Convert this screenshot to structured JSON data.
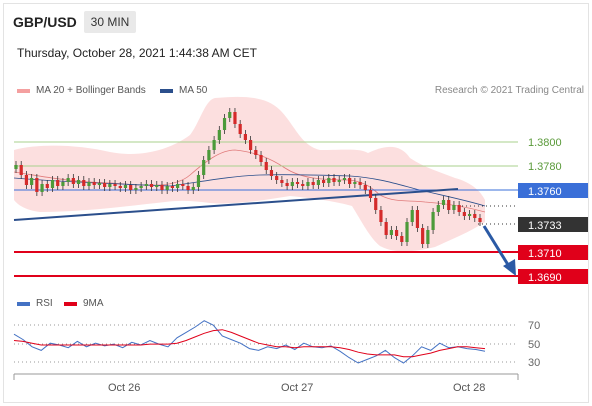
{
  "header": {
    "pair": "GBP/USD",
    "timeframe": "30 MIN",
    "datetime": "Thursday, October 28, 2021 1:44:38 AM CET"
  },
  "legend": {
    "ma20_label": "MA 20 + Bollinger Bands",
    "ma50_label": "MA 50",
    "rsi_label": "RSI",
    "ma9_label": "9MA",
    "research": "Research © 2021 Trading Central"
  },
  "colors": {
    "bollinger": "#f4a0a0",
    "ma50": "#2b4f8c",
    "rsi": "#4472c4",
    "ma9": "#e0001a",
    "support": "#e0001a",
    "resistance_line": "#3a6fd8",
    "target_line": "#a9d18e"
  },
  "chart_data": [
    {
      "type": "candlestick",
      "title": "",
      "x_ticks": [
        "Oct 26",
        "Oct 27",
        "Oct 28"
      ],
      "levels": [
        {
          "value": "1.3800",
          "kind": "target",
          "style": "pill-none"
        },
        {
          "value": "1.3780",
          "kind": "target",
          "style": "pill-none"
        },
        {
          "value": "1.3760",
          "kind": "resistance",
          "style": "pill-blue"
        },
        {
          "value": "1.3733",
          "kind": "last-price",
          "style": "pill-dark"
        },
        {
          "value": "1.3710",
          "kind": "support",
          "style": "pill-red"
        },
        {
          "value": "1.3690",
          "kind": "support",
          "style": "pill-red"
        }
      ],
      "ylim": [
        1.3665,
        1.383
      ],
      "trend": "bearish"
    },
    {
      "type": "line",
      "title": "",
      "y_ticks": [
        "70",
        "50",
        "30"
      ],
      "ylim": [
        20,
        80
      ],
      "series": [
        {
          "name": "RSI",
          "values": [
            62,
            56,
            48,
            44,
            52,
            50,
            47,
            54,
            48,
            52,
            49,
            51,
            47,
            53,
            50,
            55,
            51,
            48,
            58,
            64,
            70,
            77,
            72,
            60,
            56,
            52,
            46,
            44,
            48,
            46,
            50,
            45,
            52,
            48,
            47,
            49,
            43,
            36,
            30,
            34,
            38,
            44,
            36,
            30,
            38,
            48,
            44,
            52,
            47,
            48,
            46,
            45,
            43
          ]
        },
        {
          "name": "9MA",
          "values": [
            55,
            54,
            52,
            50,
            50,
            50,
            50,
            50,
            50,
            50,
            50,
            50,
            50,
            50,
            50,
            51,
            51,
            51,
            52,
            55,
            59,
            63,
            66,
            67,
            64,
            60,
            56,
            52,
            50,
            48,
            48,
            47,
            48,
            48,
            48,
            48,
            47,
            45,
            42,
            40,
            39,
            39,
            39,
            37,
            37,
            39,
            41,
            44,
            46,
            48,
            48,
            47,
            46
          ]
        }
      ]
    }
  ]
}
